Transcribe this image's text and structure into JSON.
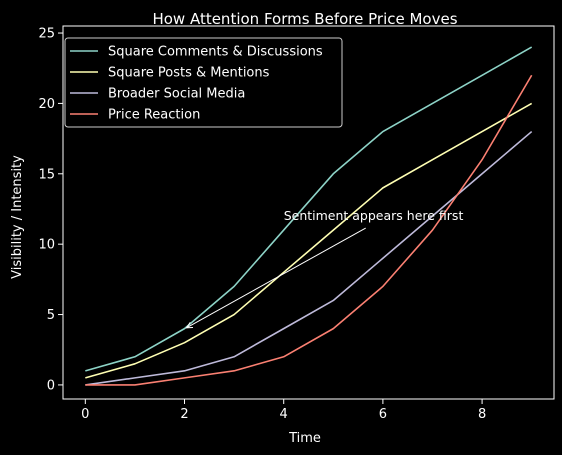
{
  "chart_data": {
    "type": "line",
    "title": "How Attention Forms Before Price Moves",
    "xlabel": "Time",
    "ylabel": "Visibility / Intensity",
    "xlim": [
      -0.45,
      9.45
    ],
    "ylim": [
      -1.0,
      25.5
    ],
    "xticks": [
      0,
      2,
      4,
      6,
      8
    ],
    "yticks": [
      0,
      5,
      10,
      15,
      20,
      25
    ],
    "x": [
      0,
      1,
      2,
      3,
      4,
      5,
      6,
      7,
      8,
      9
    ],
    "series": [
      {
        "name": "Square Comments & Discussions",
        "color": "#8dd3c7",
        "values": [
          1,
          2,
          4,
          7,
          11,
          15,
          18,
          20,
          22,
          24
        ]
      },
      {
        "name": "Square Posts & Mentions",
        "color": "#ffffb3",
        "values": [
          0.5,
          1.5,
          3,
          5,
          8,
          11,
          14,
          16,
          18,
          20
        ]
      },
      {
        "name": "Broader Social Media",
        "color": "#bebada",
        "values": [
          0,
          0.5,
          1,
          2,
          4,
          6,
          9,
          12,
          15,
          18
        ]
      },
      {
        "name": "Price Reaction",
        "color": "#fb8072",
        "values": [
          0,
          0,
          0.5,
          1,
          2,
          4,
          7,
          11,
          16,
          22
        ]
      }
    ],
    "annotation": {
      "text": "Sentiment appears here first",
      "xy": [
        2,
        4.2
      ],
      "xytext": [
        4,
        11.5
      ]
    },
    "legend": "top-left",
    "grid": false,
    "background": "#000000"
  }
}
